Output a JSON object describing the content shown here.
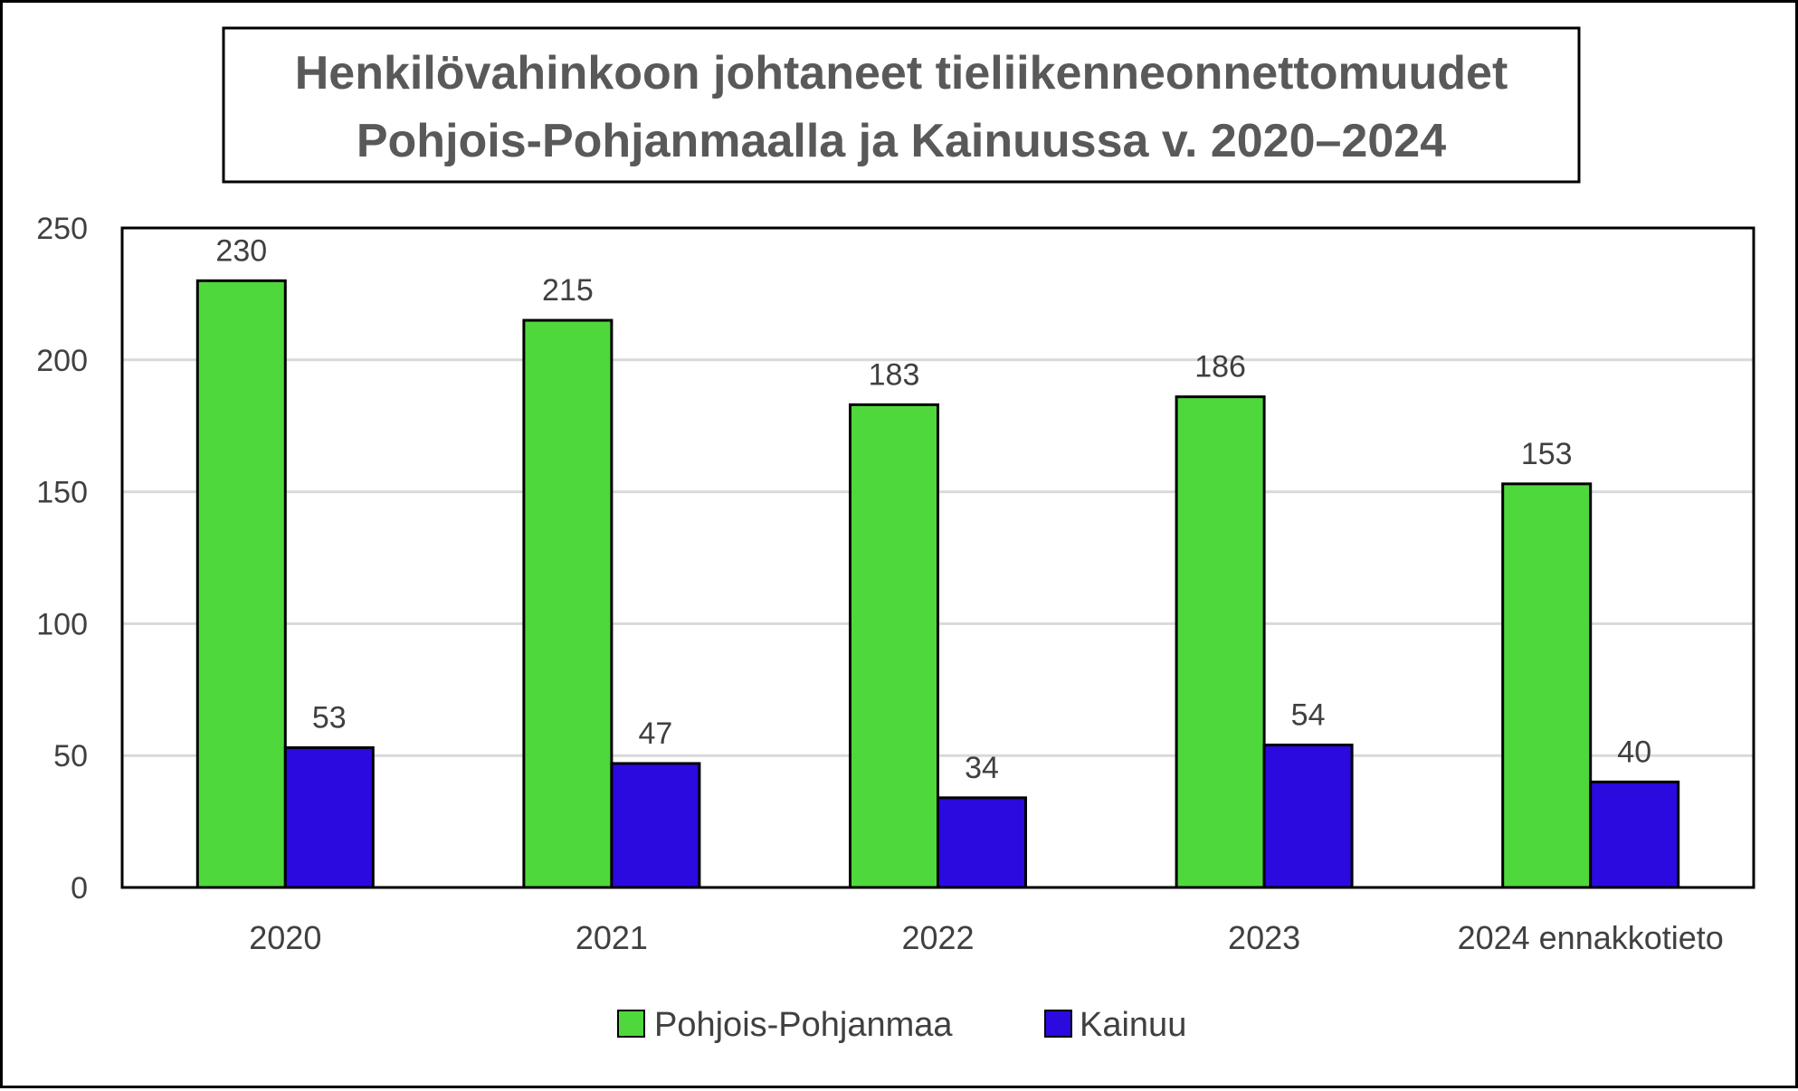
{
  "chart_data": {
    "type": "bar",
    "title": "Henkilövahinkoon johtaneet tieliikenneonnettomuudet",
    "subtitle": "Pohjois-Pohjanmaalla ja Kainuussa v. 2020–2024",
    "xlabel": "",
    "ylabel": "",
    "categories": [
      "2020",
      "2021",
      "2022",
      "2023",
      "2024 ennakkotieto"
    ],
    "series": [
      {
        "name": "Pohjois-Pohjanmaa",
        "values": [
          230,
          215,
          183,
          186,
          153
        ],
        "color": "#4fd83c"
      },
      {
        "name": "Kainuu",
        "values": [
          53,
          47,
          34,
          54,
          40
        ],
        "color": "#2b0ae0"
      }
    ],
    "ylim": [
      0,
      250
    ],
    "yticks": [
      0,
      50,
      100,
      150,
      200,
      250
    ],
    "grid": true,
    "legend": "bottom-center"
  }
}
